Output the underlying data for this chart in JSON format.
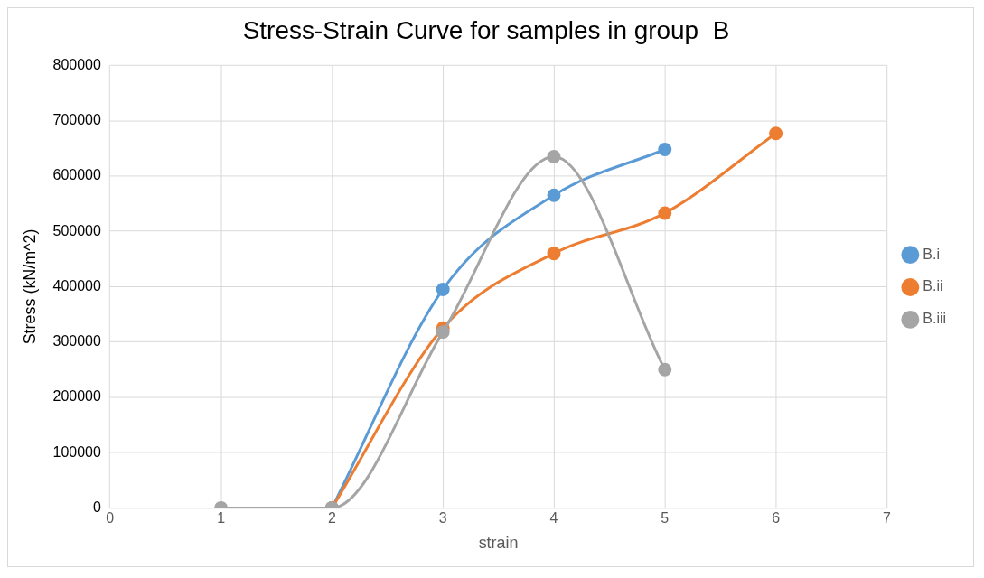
{
  "chart_data": {
    "type": "line",
    "title": "Stress-Strain Curve for samples in group  B",
    "xlabel": "strain",
    "ylabel": "Stress (kN/m^2)",
    "xlim": [
      0,
      7
    ],
    "xticks": [
      0,
      1,
      2,
      3,
      4,
      5,
      6,
      7
    ],
    "ylim": [
      0,
      800000
    ],
    "yticks": [
      0,
      100000,
      200000,
      300000,
      400000,
      500000,
      600000,
      700000,
      800000
    ],
    "grid": true,
    "legend": "right",
    "marker": "circle",
    "series": [
      {
        "name": "B.i",
        "color": "#5b9bd5",
        "x": [
          2,
          3,
          4,
          5
        ],
        "values": [
          0,
          395000,
          565000,
          648000
        ]
      },
      {
        "name": "B.ii",
        "color": "#ed7d31",
        "x": [
          2,
          3,
          4,
          5,
          6
        ],
        "values": [
          0,
          325000,
          460000,
          533000,
          677000
        ]
      },
      {
        "name": "B.iii",
        "color": "#a5a5a5",
        "x": [
          1,
          2,
          3,
          4,
          5
        ],
        "values": [
          0,
          0,
          318000,
          635000,
          250000
        ]
      }
    ]
  }
}
